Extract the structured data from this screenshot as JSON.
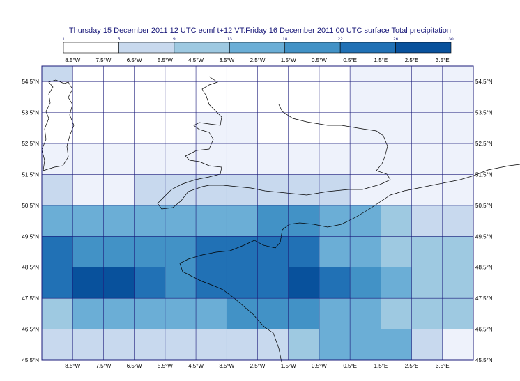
{
  "title": "Thursday 15 December 2011 12 UTC ecmf t+12 VT:Friday 16 December 2011 00 UTC surface  Total precipitation",
  "legend": {
    "levels": [
      "1",
      "5",
      "9",
      "13",
      "18",
      "22",
      "26",
      "30"
    ],
    "colors": [
      "#ffffff",
      "#c8d9ee",
      "#9ec9e1",
      "#6baed6",
      "#4292c6",
      "#2171b5",
      "#08519c"
    ]
  },
  "map": {
    "lon_labels": [
      "8.5°W",
      "7.5°W",
      "6.5°W",
      "5.5°W",
      "4.5°W",
      "3.5°W",
      "2.5°W",
      "1.5°W",
      "0.5°W",
      "0.5°E",
      "1.5°E",
      "2.5°E",
      "3.5°E"
    ],
    "lat_labels": [
      "54.5°N",
      "53.5°N",
      "52.5°N",
      "51.5°N",
      "50.5°N",
      "49.5°N",
      "48.5°N",
      "47.5°N",
      "46.5°N",
      "45.5°N"
    ],
    "lon_range": [
      -9.5,
      4.5
    ],
    "lat_range": [
      45.5,
      55.0
    ],
    "grid_lons": [
      -9.5,
      -8.5,
      -7.5,
      -6.5,
      -5.5,
      -4.5,
      -3.5,
      -2.5,
      -1.5,
      -0.5,
      0.5,
      1.5,
      2.5,
      3.5,
      4.5
    ],
    "grid_lats": [
      45.5,
      46.5,
      47.5,
      48.5,
      49.5,
      50.5,
      51.5,
      52.5,
      53.5,
      54.5,
      55.0
    ],
    "cells": [
      {
        "lat": [
          54.5,
          55.0
        ],
        "colors": [
          "#c8d9ee",
          "#ffffff",
          "#ffffff",
          "#ffffff",
          "#ffffff",
          "#ffffff",
          "#ffffff",
          "#ffffff",
          "#ffffff",
          "#ffffff",
          "#eef2fb",
          "#eef2fb",
          "#eef2fb",
          "#eef2fb"
        ]
      },
      {
        "lat": [
          53.5,
          54.5
        ],
        "colors": [
          "#ffffff",
          "#ffffff",
          "#ffffff",
          "#ffffff",
          "#ffffff",
          "#ffffff",
          "#ffffff",
          "#ffffff",
          "#ffffff",
          "#ffffff",
          "#eef2fb",
          "#eef2fb",
          "#eef2fb",
          "#eef2fb"
        ]
      },
      {
        "lat": [
          52.5,
          53.5
        ],
        "colors": [
          "#ffffff",
          "#ffffff",
          "#ffffff",
          "#ffffff",
          "#ffffff",
          "#eef2fb",
          "#eef2fb",
          "#ffffff",
          "#ffffff",
          "#ffffff",
          "#eef2fb",
          "#eef2fb",
          "#eef2fb",
          "#eef2fb"
        ]
      },
      {
        "lat": [
          51.5,
          52.5
        ],
        "colors": [
          "#eef2fb",
          "#eef2fb",
          "#eef2fb",
          "#eef2fb",
          "#eef2fb",
          "#eef2fb",
          "#eef2fb",
          "#eef2fb",
          "#eef2fb",
          "#eef2fb",
          "#eef2fb",
          "#eef2fb",
          "#eef2fb",
          "#eef2fb"
        ]
      },
      {
        "lat": [
          50.5,
          51.5
        ],
        "colors": [
          "#c8d9ee",
          "#eef2fb",
          "#eef2fb",
          "#c8d9ee",
          "#c8d9ee",
          "#c8d9ee",
          "#c8d9ee",
          "#c8d9ee",
          "#c8d9ee",
          "#c8d9ee",
          "#eef2fb",
          "#eef2fb",
          "#eef2fb",
          "#eef2fb"
        ]
      },
      {
        "lat": [
          49.5,
          50.5
        ],
        "colors": [
          "#6baed6",
          "#6baed6",
          "#6baed6",
          "#6baed6",
          "#6baed6",
          "#6baed6",
          "#6baed6",
          "#4292c6",
          "#4292c6",
          "#6baed6",
          "#6baed6",
          "#9ec9e1",
          "#c8d9ee",
          "#c8d9ee"
        ]
      },
      {
        "lat": [
          48.5,
          49.5
        ],
        "colors": [
          "#2171b5",
          "#4292c6",
          "#4292c6",
          "#4292c6",
          "#4292c6",
          "#2171b5",
          "#2171b5",
          "#2171b5",
          "#2171b5",
          "#6baed6",
          "#6baed6",
          "#9ec9e1",
          "#9ec9e1",
          "#9ec9e1"
        ]
      },
      {
        "lat": [
          47.5,
          48.5
        ],
        "colors": [
          "#2171b5",
          "#08519c",
          "#08519c",
          "#2171b5",
          "#4292c6",
          "#2171b5",
          "#2171b5",
          "#2171b5",
          "#08519c",
          "#2171b5",
          "#4292c6",
          "#6baed6",
          "#9ec9e1",
          "#9ec9e1"
        ]
      },
      {
        "lat": [
          46.5,
          47.5
        ],
        "colors": [
          "#9ec9e1",
          "#6baed6",
          "#6baed6",
          "#6baed6",
          "#6baed6",
          "#6baed6",
          "#4292c6",
          "#4292c6",
          "#4292c6",
          "#6baed6",
          "#6baed6",
          "#9ec9e1",
          "#9ec9e1",
          "#9ec9e1"
        ]
      },
      {
        "lat": [
          45.5,
          46.5
        ],
        "colors": [
          "#c8d9ee",
          "#c8d9ee",
          "#c8d9ee",
          "#c8d9ee",
          "#c8d9ee",
          "#c8d9ee",
          "#c8d9ee",
          "#c8d9ee",
          "#9ec9e1",
          "#6baed6",
          "#6baed6",
          "#6baed6",
          "#c8d9ee",
          "#eef2fb"
        ]
      }
    ]
  }
}
